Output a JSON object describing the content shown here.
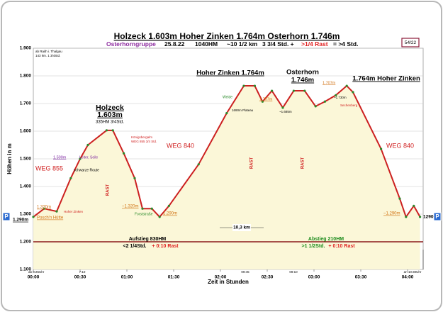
{
  "chart_data": {
    "type": "area",
    "title": "Holzeck 1.603m Hoher Zinken 1.764m Osterhorn 1.746m",
    "subtitle": [
      "Osterhorngruppe",
      "25.8.22",
      "1040HM",
      "~10 1/2 km",
      "3 3/4 Std. +",
      ">1/4 Rast",
      "= >4 Std."
    ],
    "page_code": "54/22",
    "x_label": "Zeit in Stunden",
    "y_label": "Höhen in m",
    "color": "#cc2020",
    "fill": "#fbf7d8",
    "grid": true,
    "x": [
      0,
      7,
      15,
      24,
      30,
      35,
      47,
      51,
      58,
      65,
      70,
      76,
      81,
      87,
      106,
      124,
      135,
      142,
      147,
      153,
      160,
      167,
      174,
      181,
      187,
      194,
      201,
      205,
      223,
      235,
      239,
      244,
      248
    ],
    "values": [
      1290,
      1320,
      1310,
      1430,
      1500,
      1550,
      1603,
      1603,
      1520,
      1430,
      1320,
      1320,
      1290,
      1330,
      1480,
      1665,
      1764,
      1764,
      1707,
      1746,
      1685,
      1746,
      1746,
      1690,
      1707,
      1730,
      1764,
      1741,
      1536,
      1356,
      1290,
      1330,
      1290
    ],
    "xlim": [
      0,
      250
    ],
    "ylim": [
      1100,
      1900
    ],
    "xticks": [
      {
        "value": 0,
        "label": "00:00"
      },
      {
        "value": 30,
        "label": "00:30"
      },
      {
        "value": 60,
        "label": "01:00"
      },
      {
        "value": 90,
        "label": "01:30"
      },
      {
        "value": 120,
        "label": "02:00"
      },
      {
        "value": 150,
        "label": "02:30"
      },
      {
        "value": 180,
        "label": "03:00"
      },
      {
        "value": 210,
        "label": "03:30"
      },
      {
        "value": 240,
        "label": "04:00"
      }
    ],
    "yticks": [
      {
        "value": 1100,
        "label": "1.100"
      },
      {
        "value": 1200,
        "label": "1.200"
      },
      {
        "value": 1300,
        "label": "1.300"
      },
      {
        "value": 1400,
        "label": "1.400"
      },
      {
        "value": 1500,
        "label": "1.500"
      },
      {
        "value": 1600,
        "label": "1.600"
      },
      {
        "value": 1700,
        "label": "1.700"
      },
      {
        "value": 1800,
        "label": "1.800"
      },
      {
        "value": 1900,
        "label": "1.900"
      }
    ],
    "segments": [
      10,
      15,
      20,
      5,
      20,
      10,
      25,
      20,
      10,
      5,
      15,
      10,
      10,
      15,
      15,
      45
    ],
    "annotations": [
      "ab Raith i. Thalgau",
      "143 km. 1 3/4Std.",
      "Holzeck",
      "1.603m",
      "335HM 3/4Std.",
      "Hoher Zinken 1.764m",
      "Osterhorn",
      "1.746m",
      "1.764m Hoher Zinken",
      "WEG 855",
      "WEG 840",
      "WEG 840",
      "1.500m",
      "Leiter, Seile",
      "schwarze Route",
      "1.320m",
      "Posch'n Hütte",
      "Hoher Zinken",
      "Königsbergalm",
      "WEG 855 3/4 Std.",
      "~1.320m",
      "Forststraße",
      "1.290m",
      "Weide",
      "1690m Plateau",
      "1.707m",
      "~1.685m",
      "1.707m",
      "~1.730m",
      "Sechenberg",
      "~1.290m",
      "10,3 km",
      "Aufstieg 830HM",
      "<2 1/4Std.",
      "+ 0:10 Rast",
      "Abstieg 210HM",
      ">1 1/2Std.",
      "+ 0:10 Rast",
      "RAST",
      "RAST",
      "RAST",
      "1.290m",
      "1290",
      "P",
      "P",
      "ab 8:25Uhr",
      "7:10",
      "09:45",
      "09:10",
      "an 10:30Uhr"
    ]
  }
}
